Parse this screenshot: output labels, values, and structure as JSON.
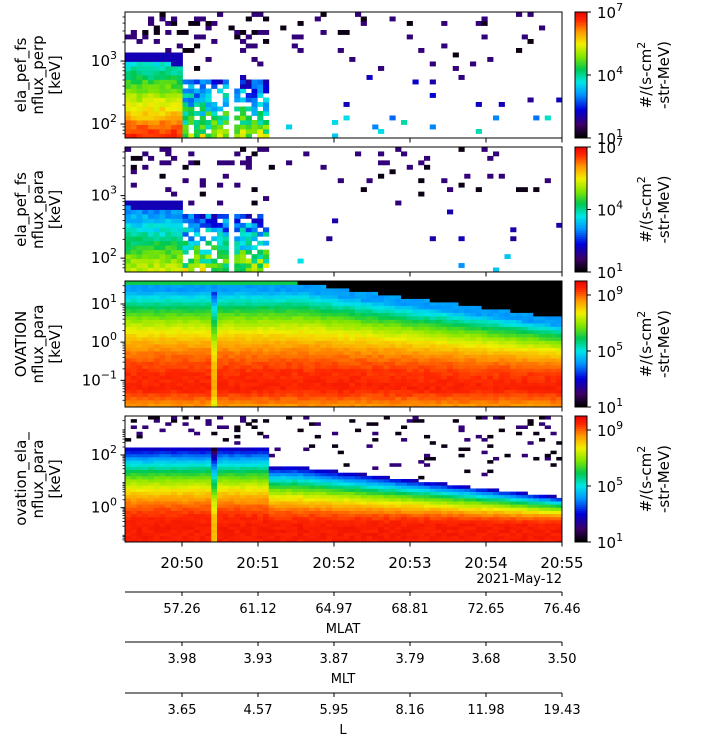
{
  "chart_data": [
    {
      "type": "heatmap",
      "ylabel": [
        "ela_pef_fs",
        "nflux_perp",
        "[keV]"
      ],
      "yscale": "log",
      "ylim": [
        60,
        6000
      ],
      "yticks": [
        {
          "v": 100,
          "label": "10",
          "exp": "2"
        },
        {
          "v": 1000,
          "label": "10",
          "exp": "3"
        }
      ],
      "colorbar": {
        "label": [
          "#/(s-cm",
          "2",
          "-str-MeV)"
        ],
        "ticks": [
          {
            "v": 1,
            "label": "10",
            "exp": "1"
          },
          {
            "v": 4,
            "label": "10",
            "exp": "4"
          },
          {
            "v": 7,
            "label": "10",
            "exp": "7"
          }
        ],
        "range": [
          1,
          7
        ]
      },
      "profile": "elfin_perp"
    },
    {
      "type": "heatmap",
      "ylabel": [
        "ela_pef_fs",
        "nflux_para",
        "[keV]"
      ],
      "yscale": "log",
      "ylim": [
        60,
        6000
      ],
      "yticks": [
        {
          "v": 100,
          "label": "10",
          "exp": "2"
        },
        {
          "v": 1000,
          "label": "10",
          "exp": "3"
        }
      ],
      "colorbar": {
        "label": [
          "#/(s-cm",
          "2",
          "-str-MeV)"
        ],
        "ticks": [
          {
            "v": 1,
            "label": "10",
            "exp": "1"
          },
          {
            "v": 4,
            "label": "10",
            "exp": "4"
          },
          {
            "v": 7,
            "label": "10",
            "exp": "7"
          }
        ],
        "range": [
          1,
          7
        ]
      },
      "profile": "elfin_para"
    },
    {
      "type": "heatmap",
      "ylabel": [
        "OVATION",
        "nflux_para",
        "[keV]"
      ],
      "yscale": "log",
      "ylim": [
        0.02,
        40
      ],
      "yticks": [
        {
          "v": 0.1,
          "label": "10",
          "exp": "−1"
        },
        {
          "v": 1,
          "label": "10",
          "exp": "0"
        },
        {
          "v": 10,
          "label": "10",
          "exp": "1"
        }
      ],
      "colorbar": {
        "label": [
          "#/(s-cm",
          "2",
          "-str-MeV)"
        ],
        "ticks": [
          {
            "v": 1,
            "label": "10",
            "exp": "1"
          },
          {
            "v": 5,
            "label": "10",
            "exp": "5"
          },
          {
            "v": 9,
            "label": "10",
            "exp": "9"
          }
        ],
        "range": [
          1,
          10
        ]
      },
      "profile": "ovation"
    },
    {
      "type": "heatmap",
      "ylabel": [
        "ovation_ela_",
        "nflux_para",
        "[keV]"
      ],
      "yscale": "log",
      "ylim": [
        0.05,
        3000
      ],
      "yticks": [
        {
          "v": 1,
          "label": "10",
          "exp": "0"
        },
        {
          "v": 100,
          "label": "10",
          "exp": "2"
        }
      ],
      "colorbar": {
        "label": [
          "#/(s-cm",
          "2",
          "-str-MeV)"
        ],
        "ticks": [
          {
            "v": 1,
            "label": "10",
            "exp": "1"
          },
          {
            "v": 5,
            "label": "10",
            "exp": "5"
          },
          {
            "v": 9,
            "label": "10",
            "exp": "9"
          }
        ],
        "range": [
          1,
          10
        ]
      },
      "profile": "combined"
    }
  ],
  "time_axis": {
    "start_min": 49.25,
    "end_min": 55.0,
    "ticks": [
      {
        "v": 50,
        "label": "20:50"
      },
      {
        "v": 51,
        "label": "20:51"
      },
      {
        "v": 52,
        "label": "20:52"
      },
      {
        "v": 53,
        "label": "20:53"
      },
      {
        "v": 54,
        "label": "20:54"
      },
      {
        "v": 55,
        "label": "20:55"
      }
    ],
    "date": "2021-May-12"
  },
  "ephemeris": [
    {
      "name": "MLAT",
      "values": [
        "57.26",
        "61.12",
        "64.97",
        "68.81",
        "72.65",
        "76.46"
      ]
    },
    {
      "name": "MLT",
      "values": [
        "3.98",
        "3.93",
        "3.87",
        "3.79",
        "3.68",
        "3.50"
      ]
    },
    {
      "name": "L",
      "values": [
        "3.65",
        "4.57",
        "5.95",
        "8.16",
        "11.98",
        "19.43"
      ]
    }
  ]
}
